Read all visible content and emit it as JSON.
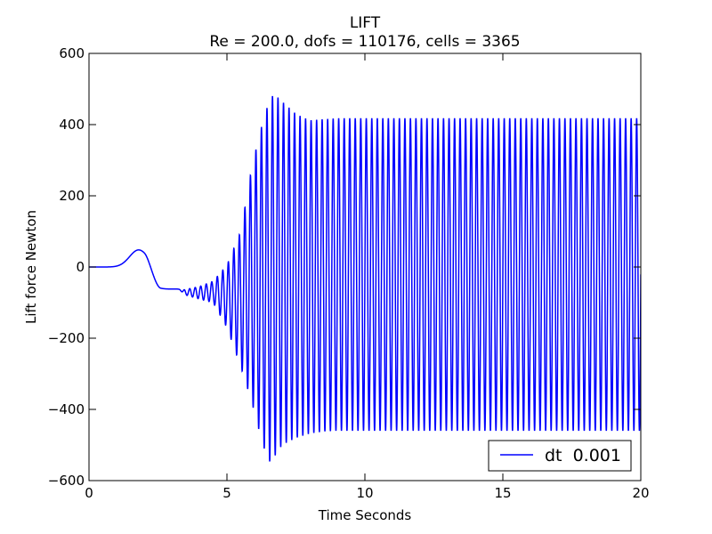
{
  "chart_data": {
    "type": "line",
    "title": "LIFT",
    "subtitle": "Re = 200.0, dofs = 110176, cells = 3365",
    "xlabel": "Time Seconds",
    "ylabel": "Lift force Newton",
    "xlim": [
      0,
      20
    ],
    "ylim": [
      -600,
      600
    ],
    "xticks": [
      0,
      5,
      10,
      15,
      20
    ],
    "xtick_labels": [
      "0",
      "5",
      "10",
      "15",
      "20"
    ],
    "yticks": [
      600,
      400,
      200,
      0,
      -200,
      -400,
      -600
    ],
    "ytick_labels": [
      "600",
      "400",
      "200",
      "0",
      "−200",
      "−400",
      "−600"
    ],
    "grid": false,
    "legend_position": "lower-right",
    "series": [
      {
        "name": "dt  0.001",
        "color": "#0000ff",
        "description": "oscillating lift force; small near-zero start, hump to ~48 at t~1.8, decays to ~-60 at t~2.5, growing oscillations from t~3.2, peak envelope ~487/-550 near t~6.7, settles to steady oscillation between ~420 and ~-460 with period ~0.2 s",
        "x": [
          0,
          0.5,
          1.0,
          1.5,
          1.8,
          2.1,
          2.5,
          3.0,
          4.0,
          5.0,
          6.0,
          6.5,
          6.7,
          7.0,
          8.0,
          9.0,
          10.0,
          15.0,
          20.0
        ],
        "y": [
          0,
          0,
          2,
          38,
          48,
          25,
          -60,
          -70,
          -80,
          0,
          0,
          460,
          487,
          465,
          412,
          418,
          418,
          418,
          418
        ],
        "envelope": {
          "start_time": 3.2,
          "period": 0.2,
          "upper_x": [
            3.2,
            4.0,
            4.5,
            5.0,
            5.5,
            5.9,
            6.2,
            6.5,
            6.7,
            7.0,
            7.5,
            8.0,
            8.5,
            9.0,
            20.0
          ],
          "upper_y": [
            -68,
            -55,
            -40,
            5,
            100,
            280,
            380,
            460,
            487,
            465,
            430,
            412,
            415,
            418,
            418
          ],
          "lower_x": [
            3.2,
            4.0,
            4.5,
            5.0,
            5.5,
            5.9,
            6.2,
            6.5,
            6.7,
            7.0,
            7.5,
            8.0,
            8.5,
            9.0,
            20.0
          ],
          "lower_y": [
            -72,
            -90,
            -100,
            -170,
            -280,
            -380,
            -470,
            -550,
            -535,
            -500,
            -480,
            -468,
            -462,
            -460,
            -460
          ]
        }
      }
    ]
  }
}
